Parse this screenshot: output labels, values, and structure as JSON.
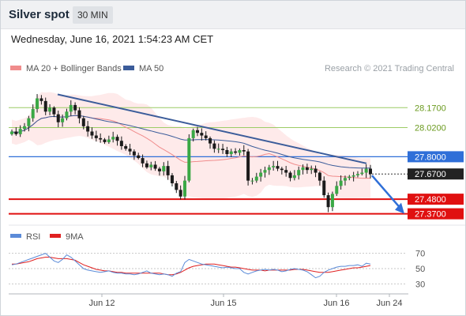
{
  "header": {
    "title": "Silver spot",
    "timeframe": "30 MIN"
  },
  "datetime": "Wednesday, June 16, 2021 1:54:23 AM CET",
  "credit": "Research © 2021 Trading Central",
  "legend": {
    "ma20": {
      "label": "MA 20 + Bollinger Bands",
      "color": "#f08c8c"
    },
    "ma50": {
      "label": "MA 50",
      "color": "#3b5c9a"
    },
    "rsi": {
      "label": "RSI",
      "color": "#5b8bd8"
    },
    "ma9": {
      "label": "9MA",
      "color": "#e02020"
    }
  },
  "chart_data": [
    {
      "type": "candlestick",
      "x_ticks": [
        "Jun 12",
        "Jun 15",
        "Jun 16",
        "Jun 24"
      ],
      "ylim": [
        27.32,
        28.38
      ],
      "levels": [
        {
          "value": 28.17,
          "label": "28.1700",
          "kind": "resistance",
          "color": "#9ccc65"
        },
        {
          "value": 28.02,
          "label": "28.0200",
          "kind": "resistance",
          "color": "#9ccc65"
        },
        {
          "value": 27.8,
          "label": "27.8000",
          "kind": "pivot",
          "color": "#2f6fd8"
        },
        {
          "value": 27.67,
          "label": "27.6700",
          "kind": "last-price",
          "color": "#222222"
        },
        {
          "value": 27.48,
          "label": "27.4800",
          "kind": "support",
          "color": "#e01010"
        },
        {
          "value": 27.37,
          "label": "27.3700",
          "kind": "support",
          "color": "#e01010"
        }
      ],
      "trendline": {
        "from": 28.27,
        "to": 27.75,
        "color": "#3b5c9a"
      },
      "forecast_arrow": {
        "from": 27.67,
        "to": 27.37,
        "color": "#2f6fd8"
      },
      "close": [
        27.99,
        27.97,
        28.01,
        28.03,
        28.09,
        28.16,
        28.24,
        28.22,
        28.14,
        28.17,
        28.12,
        28.06,
        28.09,
        28.14,
        28.19,
        28.15,
        28.09,
        28.03,
        27.99,
        27.96,
        27.94,
        27.93,
        27.91,
        27.93,
        27.95,
        27.92,
        27.88,
        27.86,
        27.84,
        27.81,
        27.79,
        27.75,
        27.72,
        27.74,
        27.71,
        27.69,
        27.73,
        27.66,
        27.6,
        27.55,
        27.5,
        27.62,
        27.94,
        28.0,
        27.98,
        27.96,
        27.94,
        27.9,
        27.86,
        27.86,
        27.85,
        27.82,
        27.84,
        27.83,
        27.85,
        27.84,
        27.62,
        27.62,
        27.65,
        27.68,
        27.7,
        27.72,
        27.73,
        27.71,
        27.7,
        27.68,
        27.64,
        27.66,
        27.7,
        27.72,
        27.7,
        27.71,
        27.68,
        27.62,
        27.51,
        27.42,
        27.52,
        27.58,
        27.62,
        27.64,
        27.65,
        27.66,
        27.67,
        27.68,
        27.71,
        27.67
      ]
    },
    {
      "type": "line",
      "name": "RSI",
      "ylim": [
        20,
        80
      ],
      "y_ticks": [
        70,
        50,
        30
      ],
      "rsi": [
        55,
        56,
        58,
        60,
        62,
        64,
        66,
        68,
        70,
        65,
        60,
        58,
        62,
        68,
        65,
        60,
        55,
        50,
        48,
        47,
        46,
        45,
        46,
        47,
        45,
        44,
        44,
        43,
        43,
        42,
        43,
        45,
        47,
        44,
        43,
        42,
        43,
        42,
        40,
        44,
        46,
        58,
        62,
        60,
        58,
        56,
        55,
        54,
        53,
        52,
        51,
        52,
        51,
        50,
        50,
        45,
        43,
        45,
        47,
        48,
        49,
        48,
        49,
        48,
        46,
        47,
        49,
        50,
        49,
        48,
        46,
        42,
        38,
        40,
        45,
        48,
        50,
        52,
        53,
        53,
        54,
        54,
        55,
        53,
        57,
        56
      ],
      "ma9": [
        56,
        56,
        57,
        58,
        59,
        61,
        63,
        64,
        65,
        65,
        64,
        63,
        63,
        63,
        62,
        61,
        58,
        55,
        53,
        51,
        49,
        48,
        47,
        47,
        46,
        45,
        45,
        44,
        44,
        44,
        44,
        44,
        44,
        44,
        44,
        44,
        43,
        42,
        42,
        43,
        45,
        48,
        51,
        53,
        54,
        55,
        56,
        56,
        56,
        55,
        54,
        53,
        52,
        52,
        51,
        50,
        49,
        48,
        48,
        48,
        47,
        48,
        48,
        48,
        48,
        48,
        48,
        49,
        49,
        49,
        48,
        47,
        46,
        45,
        45,
        45,
        46,
        47,
        48,
        49,
        50,
        51,
        51,
        52,
        53,
        54
      ]
    }
  ]
}
